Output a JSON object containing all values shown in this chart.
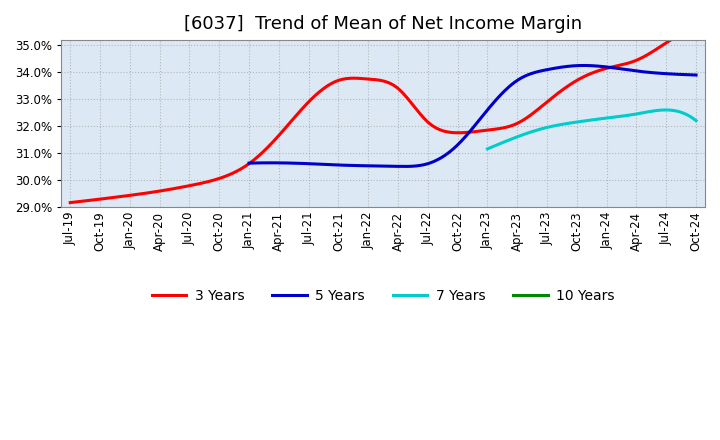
{
  "title": "[6037]  Trend of Mean of Net Income Margin",
  "ylim": [
    0.29,
    0.352
  ],
  "yticks": [
    0.29,
    0.3,
    0.31,
    0.32,
    0.33,
    0.34,
    0.35
  ],
  "background_color": "#ffffff",
  "plot_bg_color": "#dce9f5",
  "grid_color": "#aaaaaa",
  "series": {
    "3 Years": {
      "color": "#ff0000",
      "x": [
        0,
        1,
        2,
        3,
        4,
        5,
        6,
        7,
        8,
        9,
        10,
        11,
        12,
        13,
        14,
        15,
        16,
        17,
        18,
        19,
        20,
        21
      ],
      "y": [
        0.2915,
        0.2928,
        0.2942,
        0.2958,
        0.2978,
        0.3005,
        0.306,
        0.3165,
        0.329,
        0.337,
        0.3375,
        0.334,
        0.3215,
        0.3175,
        0.3185,
        0.321,
        0.329,
        0.337,
        0.3415,
        0.3445,
        0.351,
        0.3565
      ]
    },
    "5 Years": {
      "color": "#0000cc",
      "x": [
        6,
        7,
        8,
        9,
        10,
        11,
        12,
        13,
        14,
        15,
        16,
        17,
        18,
        19,
        20,
        21
      ],
      "y": [
        0.3062,
        0.3063,
        0.306,
        0.3055,
        0.3052,
        0.305,
        0.306,
        0.313,
        0.326,
        0.337,
        0.341,
        0.3425,
        0.342,
        0.3405,
        0.3395,
        0.339
      ]
    },
    "7 Years": {
      "color": "#00cccc",
      "x": [
        14,
        15,
        16,
        17,
        18,
        19,
        20,
        21
      ],
      "y": [
        0.3115,
        0.316,
        0.3195,
        0.3215,
        0.323,
        0.3245,
        0.326,
        0.322
      ]
    },
    "10 Years": {
      "color": "#008800",
      "x": [],
      "y": []
    }
  },
  "x_labels": [
    "Jul-19",
    "Oct-19",
    "Jan-20",
    "Apr-20",
    "Jul-20",
    "Oct-20",
    "Jan-21",
    "Apr-21",
    "Jul-21",
    "Oct-21",
    "Jan-22",
    "Apr-22",
    "Jul-22",
    "Oct-22",
    "Jan-23",
    "Apr-23",
    "Jul-23",
    "Oct-23",
    "Jan-24",
    "Apr-24",
    "Jul-24",
    "Oct-24"
  ],
  "title_fontsize": 13,
  "tick_fontsize": 8.5,
  "legend_fontsize": 10
}
